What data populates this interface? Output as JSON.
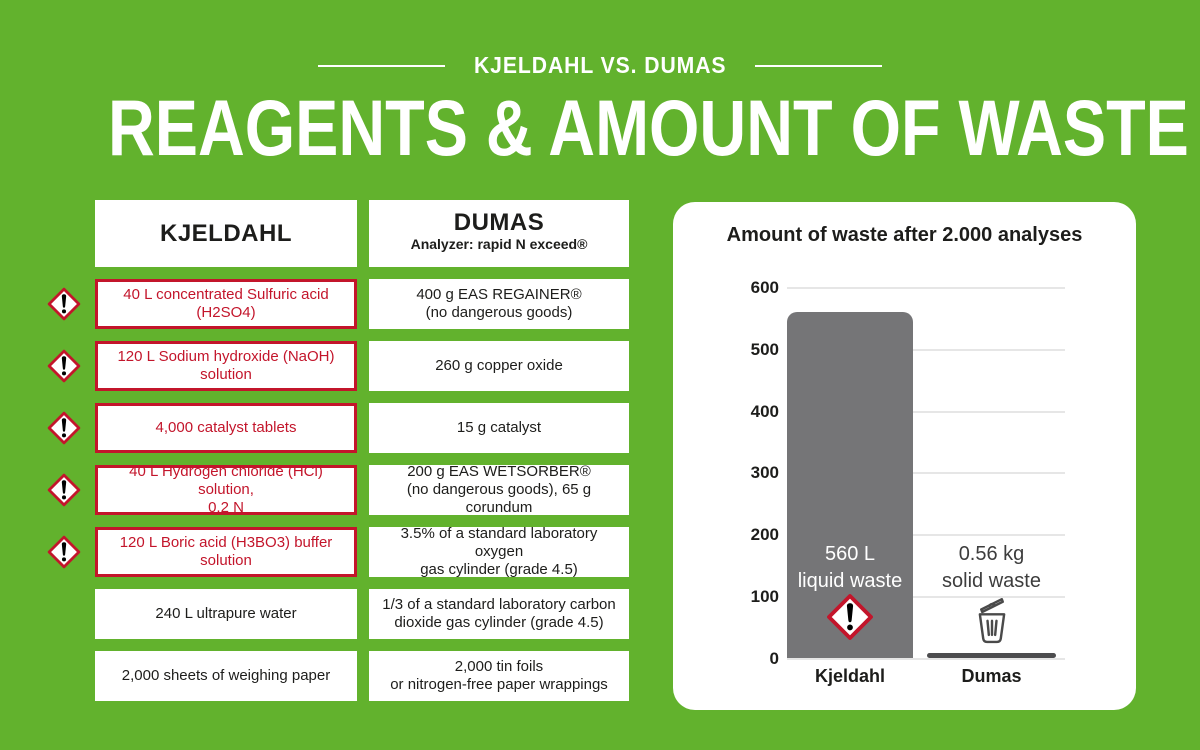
{
  "header": {
    "eyebrow": "KJELDAHL VS. DUMAS",
    "title": "REAGENTS & AMOUNT OF WASTE"
  },
  "table": {
    "columns": {
      "kjeldahl": "KJELDAHL",
      "dumas": "DUMAS",
      "dumas_sub": "Analyzer: rapid N exceed®"
    },
    "rows": [
      {
        "kjeldahl": "40 L concentrated Sulfuric acid (H2SO4)",
        "hazard": true,
        "dumas": "400 g EAS REGAINER®\n(no dangerous goods)"
      },
      {
        "kjeldahl": "120 L Sodium hydroxide (NaOH) solution",
        "hazard": true,
        "dumas": "260 g copper oxide"
      },
      {
        "kjeldahl": "4,000 catalyst tablets",
        "hazard": true,
        "dumas": "15 g catalyst"
      },
      {
        "kjeldahl": "40 L Hydrogen chloride (HCl) solution,\n0.2 N",
        "hazard": true,
        "dumas": "200 g EAS WETSORBER®\n(no dangerous goods), 65 g corundum"
      },
      {
        "kjeldahl": "120 L Boric acid (H3BO3) buffer solution",
        "hazard": true,
        "dumas": "3.5% of a standard laboratory oxygen\ngas cylinder (grade 4.5)"
      },
      {
        "kjeldahl": "240 L ultrapure water",
        "hazard": false,
        "dumas": "1/3 of a standard laboratory carbon\ndioxide gas cylinder (grade 4.5)"
      },
      {
        "kjeldahl": "2,000 sheets of weighing paper",
        "hazard": false,
        "dumas": "2,000 tin foils\nor nitrogen-free paper wrappings"
      }
    ]
  },
  "chart_data": {
    "type": "bar",
    "title": "Amount of waste after 2.000 analyses",
    "categories": [
      "Kjeldahl",
      "Dumas"
    ],
    "values": [
      560,
      0.56
    ],
    "bar_labels": [
      "560 L\nliquid waste",
      "0.56 kg\nsolid waste"
    ],
    "bar_icons": [
      "ghs-exclamation",
      "trash-bin"
    ],
    "y_ticks": [
      600,
      500,
      400,
      300,
      200,
      100,
      0
    ],
    "ylim": [
      0,
      600
    ],
    "grid": true,
    "legend": "none",
    "bar_colors": [
      "#757577",
      "#4d4d4f"
    ]
  },
  "colors": {
    "background_green": "#62b22d",
    "hazard_red": "#c3152b",
    "text_dark": "#1d1d1b",
    "bar_gray": "#757577",
    "gridline_gray": "#e6e6e6"
  }
}
